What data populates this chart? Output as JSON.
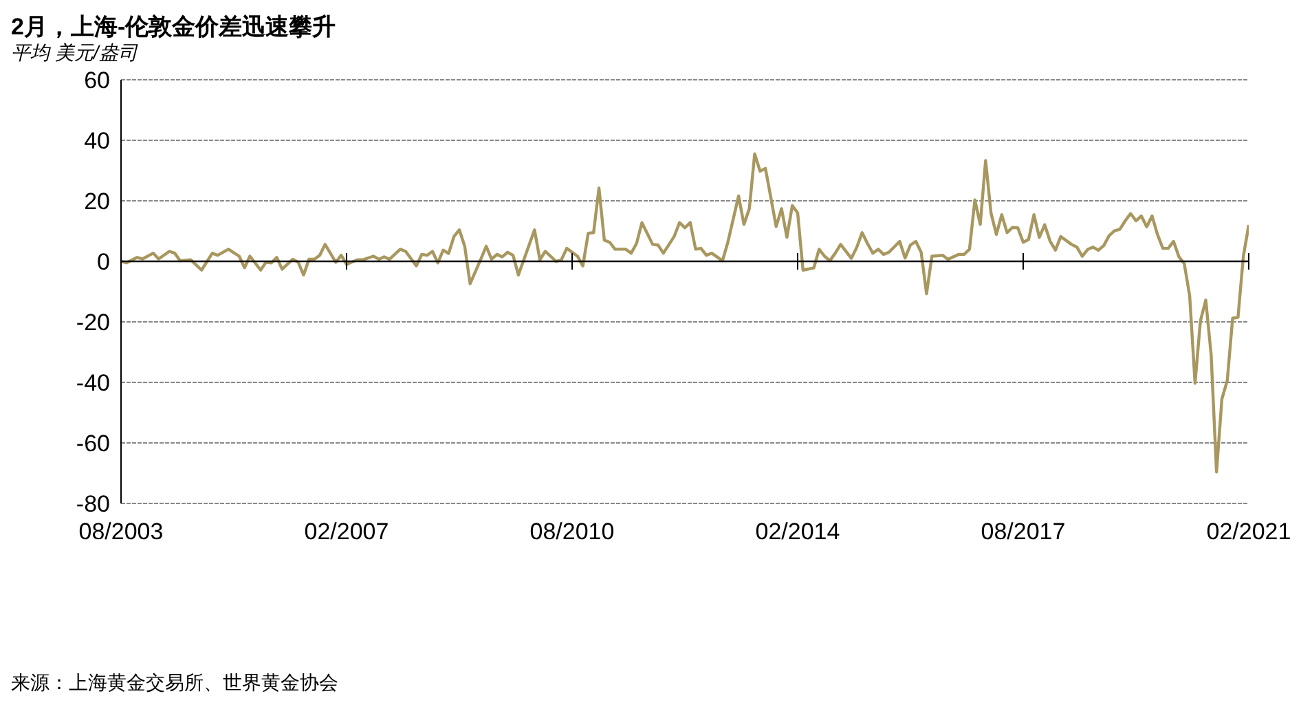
{
  "chart_data": {
    "type": "line",
    "title": "2月，上海-伦敦金价差迅速攀升",
    "subtitle": "平均 美元/盎司",
    "annotations": [
      "来源：上海黄金交易所、世界黄金协会"
    ],
    "x": [
      "2003-08",
      "2003-09",
      "2003-11",
      "2003-12",
      "2004-02",
      "2004-03",
      "2004-05",
      "2004-06",
      "2004-07",
      "2004-09",
      "2004-11",
      "2005-01",
      "2005-02",
      "2005-04",
      "2005-06",
      "2005-07",
      "2005-08",
      "2005-10",
      "2005-11",
      "2005-12",
      "2006-01",
      "2006-02",
      "2006-04",
      "2006-05",
      "2006-06",
      "2006-07",
      "2006-08",
      "2006-09",
      "2006-10",
      "2006-12",
      "2007-01",
      "2007-02",
      "2007-04",
      "2007-05",
      "2007-07",
      "2007-08",
      "2007-09",
      "2007-10",
      "2007-12",
      "2008-01",
      "2008-03",
      "2008-04",
      "2008-05",
      "2008-06",
      "2008-07",
      "2008-08",
      "2008-09",
      "2008-10",
      "2008-11",
      "2008-12",
      "2009-01",
      "2009-03",
      "2009-04",
      "2009-05",
      "2009-06",
      "2009-07",
      "2009-08",
      "2009-09",
      "2009-10",
      "2010-01",
      "2010-02",
      "2010-03",
      "2010-05",
      "2010-06",
      "2010-07",
      "2010-09",
      "2010-10",
      "2010-11",
      "2010-12",
      "2011-01",
      "2011-02",
      "2011-03",
      "2011-04",
      "2011-06",
      "2011-07",
      "2011-08",
      "2011-09",
      "2011-11",
      "2011-12",
      "2012-01",
      "2012-03",
      "2012-04",
      "2012-05",
      "2012-06",
      "2012-07",
      "2012-08",
      "2012-09",
      "2012-10",
      "2012-12",
      "2013-01",
      "2013-03",
      "2013-04",
      "2013-05",
      "2013-06",
      "2013-07",
      "2013-08",
      "2013-10",
      "2013-11",
      "2013-12",
      "2014-01",
      "2014-02",
      "2014-03",
      "2014-05",
      "2014-06",
      "2014-07",
      "2014-08",
      "2014-09",
      "2014-10",
      "2014-12",
      "2015-01",
      "2015-02",
      "2015-03",
      "2015-04",
      "2015-05",
      "2015-06",
      "2015-07",
      "2015-09",
      "2015-10",
      "2015-11",
      "2015-12",
      "2016-01",
      "2016-02",
      "2016-03",
      "2016-05",
      "2016-06",
      "2016-08",
      "2016-09",
      "2016-10",
      "2016-11",
      "2016-12",
      "2017-01",
      "2017-02",
      "2017-03",
      "2017-04",
      "2017-05",
      "2017-06",
      "2017-07",
      "2017-08",
      "2017-09",
      "2017-10",
      "2017-11",
      "2017-12",
      "2018-01",
      "2018-02",
      "2018-03",
      "2018-05",
      "2018-06",
      "2018-07",
      "2018-08",
      "2018-09",
      "2018-10",
      "2018-11",
      "2018-12",
      "2019-01",
      "2019-02",
      "2019-03",
      "2019-04",
      "2019-05",
      "2019-06",
      "2019-07",
      "2019-08",
      "2019-09",
      "2019-10",
      "2019-11",
      "2019-12",
      "2020-01",
      "2020-02",
      "2020-03",
      "2020-04",
      "2020-05",
      "2020-06",
      "2020-07",
      "2020-08",
      "2020-09",
      "2020-10",
      "2020-11",
      "2020-12",
      "2021-01",
      "2021-02"
    ],
    "series": [
      {
        "color": "#a8975f",
        "values": [
          0,
          -0.5,
          1.3,
          0.8,
          2.7,
          0.8,
          3.3,
          2.7,
          0.2,
          0.5,
          -2.9,
          2.7,
          2,
          4,
          1.7,
          -2.1,
          1.7,
          -2.9,
          -0.3,
          -0.5,
          1.3,
          -2.6,
          0.7,
          -0.3,
          -4.5,
          0.7,
          0.7,
          2,
          5.6,
          -0.3,
          2,
          -1,
          0.5,
          0.5,
          1.7,
          0.7,
          1.5,
          0.7,
          4,
          3.3,
          -1.5,
          2.3,
          2,
          3.3,
          -0.5,
          3.7,
          2.6,
          8.2,
          10.4,
          5,
          -7.4,
          0.7,
          5,
          0.7,
          2.3,
          1.5,
          3,
          2,
          -4.5,
          10.4,
          0.5,
          3.3,
          0,
          0.5,
          4.3,
          1.7,
          -1.5,
          9.3,
          9.5,
          24.2,
          7,
          6.3,
          4,
          4,
          2.7,
          5.9,
          12.8,
          5.6,
          5.4,
          2.7,
          8.2,
          12.8,
          11.1,
          12.8,
          4,
          4.3,
          2,
          2.7,
          0.2,
          6.3,
          21.6,
          12.2,
          17.4,
          35.5,
          29.8,
          30.7,
          11.5,
          17.4,
          8,
          18.4,
          16,
          -2.9,
          -2.2,
          4,
          1.7,
          0.2,
          2.7,
          5.6,
          1,
          4.6,
          9.5,
          5.9,
          2.7,
          4,
          2.3,
          3,
          6.6,
          1.1,
          5.4,
          6.6,
          3,
          -10.7,
          1.7,
          2,
          0.7,
          2.3,
          2.3,
          4,
          20.3,
          12.2,
          33.3,
          16,
          8.9,
          15.4,
          9.5,
          11.2,
          11.1,
          6.3,
          7.2,
          15.4,
          7.9,
          12.1,
          6.7,
          3.7,
          8.2,
          5.6,
          4.7,
          1.7,
          3.9,
          4.7,
          3.7,
          5.2,
          8.5,
          10.1,
          10.6,
          13.4,
          15.8,
          13.4,
          15,
          11.4,
          15,
          8.9,
          4.3,
          4.3,
          6.6,
          1.5,
          -0.8,
          -11.4,
          -40.3,
          -19.7,
          -12.8,
          -30.9,
          -69.6,
          -45.5,
          -39.4,
          -18.8,
          -18.5,
          1.7,
          12
        ]
      }
    ],
    "xlim": [
      "2003-08",
      "2021-02"
    ],
    "xticks": [
      {
        "value": "2003-08",
        "label": "08/2003"
      },
      {
        "value": "2007-02",
        "label": "02/2007"
      },
      {
        "value": "2010-08",
        "label": "08/2010"
      },
      {
        "value": "2014-02",
        "label": "02/2014"
      },
      {
        "value": "2017-08",
        "label": "08/2017"
      },
      {
        "value": "2021-02",
        "label": "02/2021"
      }
    ],
    "ylim": [
      -80,
      60
    ],
    "yticks": [
      -80,
      -60,
      -40,
      -20,
      0,
      20,
      40,
      60
    ],
    "grid": "y",
    "marker": "none",
    "line_style": "solid"
  }
}
